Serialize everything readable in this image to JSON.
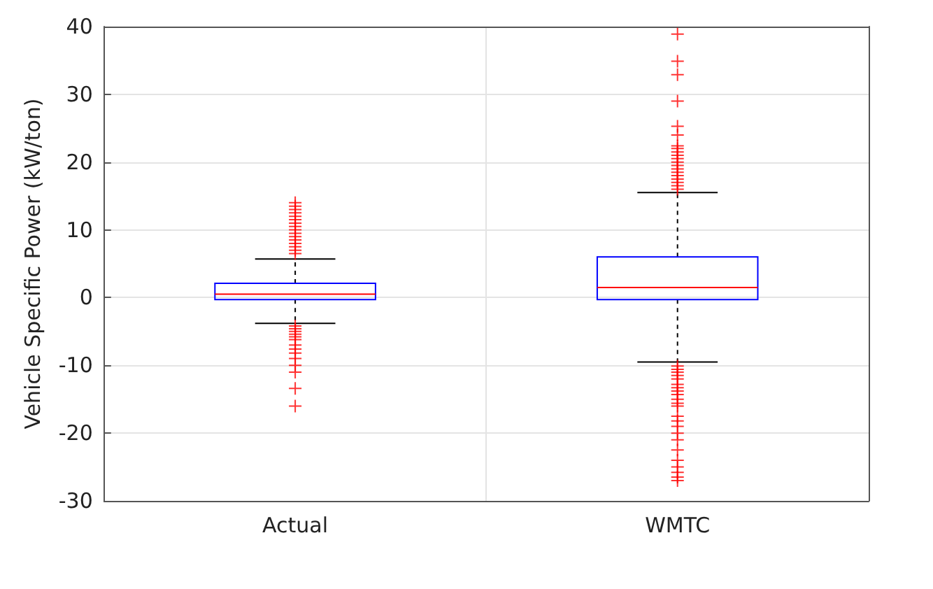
{
  "chart_data": {
    "type": "box",
    "ylabel": "Vehicle Specific Power (kW/ton)",
    "categories": [
      "Actual",
      "WMTC"
    ],
    "ylim": [
      -30,
      40
    ],
    "yticks": [
      -30,
      -20,
      -10,
      0,
      10,
      20,
      30,
      40
    ],
    "grid": true,
    "marker": "cross",
    "series": [
      {
        "color": "#0000ff",
        "boxes": [
          {
            "low": -3.8,
            "q1": -0.3,
            "median": 0.5,
            "q3": 2.1,
            "high": 5.7,
            "outliers": [
              14,
              13.5,
              13,
              12.5,
              12,
              11.5,
              11,
              10.5,
              10,
              9.5,
              9,
              8.5,
              8,
              7.5,
              7,
              6.5,
              -4.2,
              -4.6,
              -5,
              -5.4,
              -5.8,
              -6.2,
              -7,
              -7.6,
              -8.2,
              -9,
              -10,
              -11,
              -13.4,
              -16
            ]
          },
          {
            "low": -9.5,
            "q1": -0.3,
            "median": 1.5,
            "q3": 6,
            "high": 15.5,
            "outliers": [
              38.9,
              34.9,
              32.9,
              29,
              25.3,
              24,
              22.4,
              22,
              21.5,
              21,
              20.5,
              20,
              19.5,
              19,
              18.5,
              18,
              17.5,
              17,
              16.5,
              16,
              -10.1,
              -10.6,
              -11,
              -11.5,
              -12,
              -12.8,
              -13.3,
              -13.8,
              -14.3,
              -15,
              -15.6,
              -16,
              -17.5,
              -18.2,
              -19,
              -20,
              -21,
              -22.5,
              -24,
              -25,
              -25.8,
              -26.5,
              -27
            ]
          }
        ]
      }
    ]
  }
}
